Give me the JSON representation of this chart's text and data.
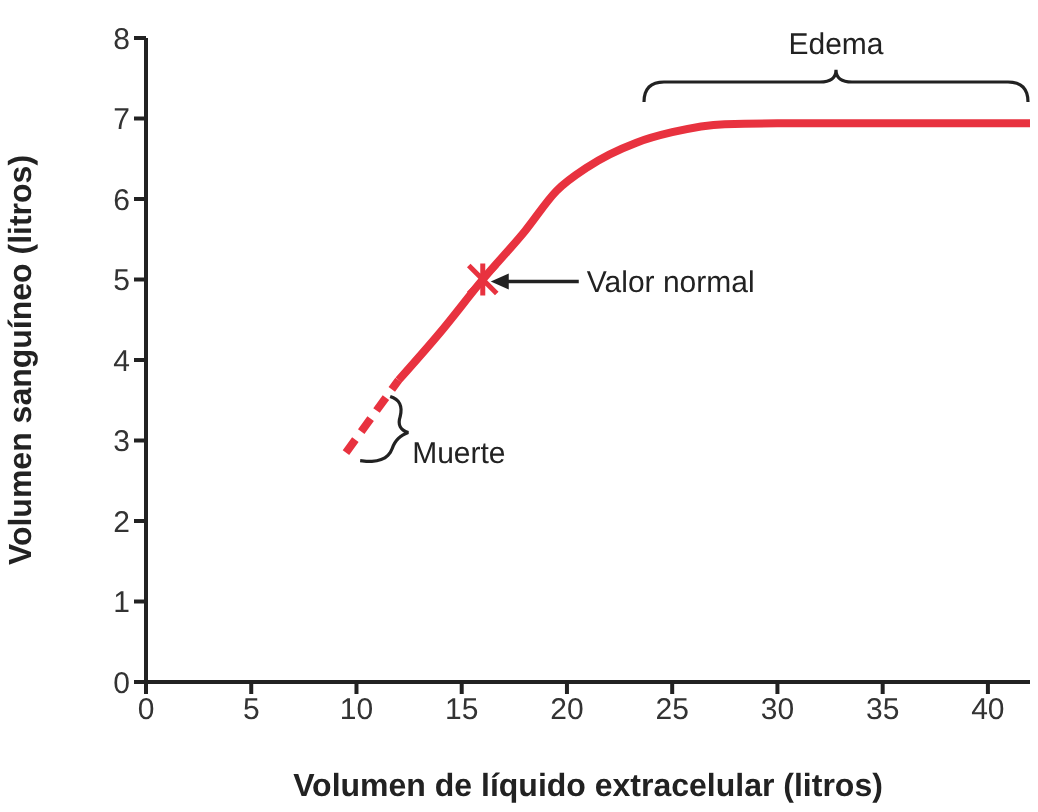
{
  "chart_data": {
    "type": "line",
    "xlabel": "Volumen de líquido extracelular (litros)",
    "ylabel": "Volumen sanguíneo (litros)",
    "xlim": [
      0,
      42
    ],
    "ylim": [
      0,
      8
    ],
    "xticks": [
      0,
      5,
      10,
      15,
      20,
      25,
      30,
      35,
      40
    ],
    "yticks": [
      0,
      1,
      2,
      3,
      4,
      5,
      6,
      7,
      8
    ],
    "grid": false,
    "legend": false,
    "series": [
      {
        "color": "#e8323f",
        "line_style": "dashed",
        "marker": "none",
        "x": [
          9.5,
          12
        ],
        "values": [
          2.85,
          3.75
        ]
      },
      {
        "color": "#e8323f",
        "line_style": "solid",
        "marker": "none",
        "x": [
          12,
          14,
          16,
          18,
          19.5,
          21,
          23.3,
          25,
          27.5,
          30,
          35,
          42
        ],
        "values": [
          3.75,
          4.35,
          5,
          5.6,
          6.1,
          6.4,
          6.7,
          6.83,
          6.93,
          6.94,
          6.94,
          6.94
        ]
      },
      {
        "type": "scatter",
        "color": "#e8323f",
        "marker": "cross",
        "x": [
          16
        ],
        "values": [
          5
        ]
      }
    ],
    "annotations": [
      "Edema",
      {
        "text": "Valor normal",
        "x": 16,
        "y": 5
      },
      {
        "text": "Muerte",
        "x": 9.7,
        "y": 2.8
      }
    ]
  }
}
